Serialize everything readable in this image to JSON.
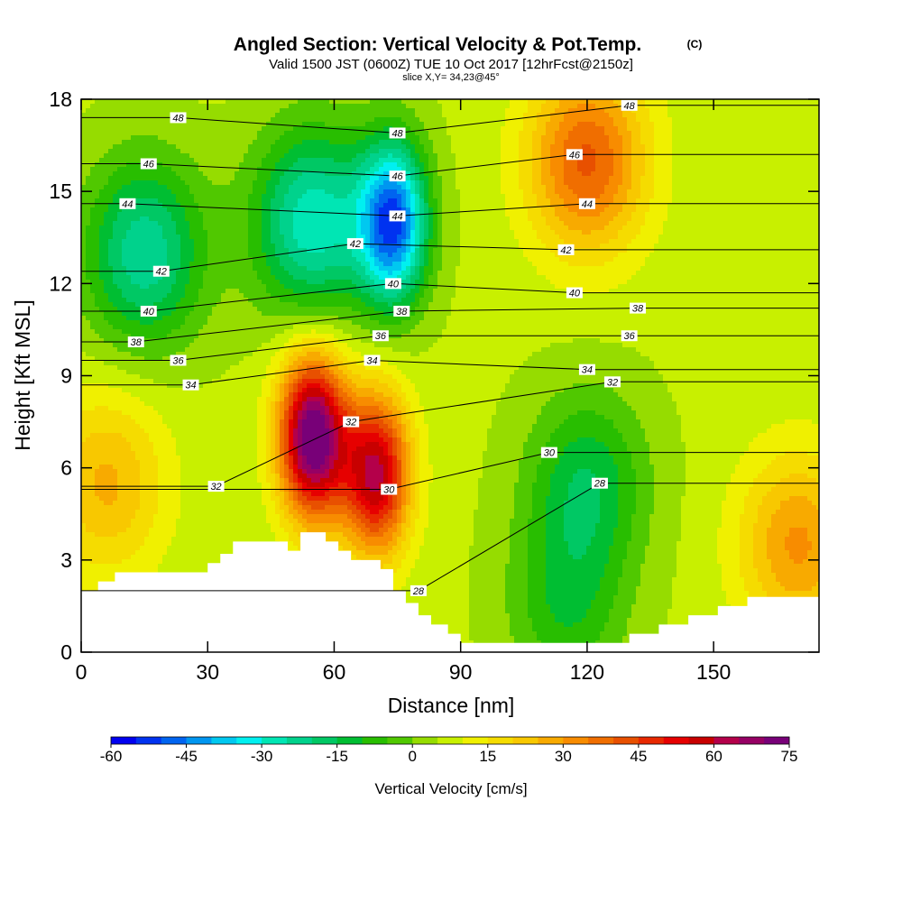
{
  "header": {
    "title": "Angled Section: Vertical Velocity & Pot.Temp.",
    "title_unit": "(C)",
    "subtitle": "Valid 1500 JST (0600Z) TUE 10 Oct 2017 [12hrFcst@2150z]",
    "slice": "slice X,Y= 34,23@45°"
  },
  "chart_data": {
    "type": "heatmap",
    "xlabel": "Distance [nm]",
    "ylabel": "Height [Kft MSL]",
    "xlim": [
      0,
      175
    ],
    "ylim": [
      0,
      18
    ],
    "x_ticks": [
      0,
      30,
      60,
      90,
      120,
      150
    ],
    "y_ticks": [
      0,
      3,
      6,
      9,
      12,
      15,
      18
    ],
    "colorbar": {
      "label": "Vertical Velocity [cm/s]",
      "min": -60,
      "max": 75,
      "step": 5,
      "ticks": [
        -60,
        -45,
        -30,
        -15,
        0,
        15,
        30,
        45,
        60,
        75
      ],
      "colors": [
        "#0000f0",
        "#0032f0",
        "#0064f0",
        "#0096f0",
        "#00c8f0",
        "#00f0f0",
        "#00e6b4",
        "#00d28c",
        "#00c864",
        "#00be32",
        "#28be00",
        "#50c800",
        "#96dc00",
        "#c8f000",
        "#f0f000",
        "#f5dc00",
        "#f8c800",
        "#f8aa00",
        "#f88c00",
        "#f06e00",
        "#e85000",
        "#e82800",
        "#e60000",
        "#c80000",
        "#b4004a",
        "#960064",
        "#780078"
      ]
    },
    "terrain": [
      [
        0,
        2.0
      ],
      [
        4,
        2.0
      ],
      [
        4,
        2.3
      ],
      [
        8,
        2.3
      ],
      [
        8,
        2.6
      ],
      [
        30,
        2.6
      ],
      [
        30,
        2.9
      ],
      [
        33,
        2.9
      ],
      [
        33,
        3.2
      ],
      [
        36,
        3.2
      ],
      [
        36,
        3.6
      ],
      [
        49,
        3.6
      ],
      [
        49,
        3.3
      ],
      [
        52,
        3.3
      ],
      [
        52,
        3.9
      ],
      [
        58,
        3.9
      ],
      [
        58,
        3.6
      ],
      [
        61,
        3.6
      ],
      [
        61,
        3.3
      ],
      [
        64,
        3.3
      ],
      [
        64,
        3.0
      ],
      [
        71,
        3.0
      ],
      [
        71,
        2.7
      ],
      [
        74,
        2.7
      ],
      [
        74,
        2.0
      ],
      [
        77,
        2.0
      ],
      [
        77,
        1.6
      ],
      [
        80,
        1.6
      ],
      [
        80,
        1.2
      ],
      [
        83,
        1.2
      ],
      [
        83,
        0.9
      ],
      [
        87,
        0.9
      ],
      [
        87,
        0.6
      ],
      [
        90,
        0.6
      ],
      [
        90,
        0.3
      ],
      [
        130,
        0.3
      ],
      [
        130,
        0.6
      ],
      [
        137,
        0.6
      ],
      [
        137,
        0.9
      ],
      [
        144,
        0.9
      ],
      [
        144,
        1.2
      ],
      [
        151,
        1.2
      ],
      [
        151,
        1.5
      ],
      [
        158,
        1.5
      ],
      [
        158,
        1.8
      ],
      [
        175,
        1.8
      ]
    ],
    "velocity_features": [
      {
        "x": 55,
        "y": 7.0,
        "value": 72
      },
      {
        "x": 70,
        "y": 5.8,
        "value": 55
      },
      {
        "x": 74,
        "y": 14.0,
        "value": -55
      },
      {
        "x": 55,
        "y": 14.0,
        "value": -35
      },
      {
        "x": 15,
        "y": 13.0,
        "value": -30
      },
      {
        "x": 120,
        "y": 16.0,
        "value": 35
      },
      {
        "x": 6,
        "y": 5.5,
        "value": 20
      },
      {
        "x": 170,
        "y": 3.5,
        "value": 25
      },
      {
        "x": 120,
        "y": 5.5,
        "value": -20
      },
      {
        "x": 115,
        "y": 1.5,
        "value": -15
      }
    ],
    "isentropes": [
      {
        "value": 48,
        "labels": [
          [
            23,
            17.4
          ],
          [
            75,
            16.9
          ],
          [
            130,
            17.8
          ]
        ]
      },
      {
        "value": 46,
        "labels": [
          [
            16,
            15.9
          ],
          [
            75,
            15.5
          ],
          [
            117,
            16.2
          ]
        ]
      },
      {
        "value": 44,
        "labels": [
          [
            11,
            14.6
          ],
          [
            75,
            14.2
          ],
          [
            120,
            14.6
          ]
        ]
      },
      {
        "value": 42,
        "labels": [
          [
            19,
            12.4
          ],
          [
            65,
            13.3
          ],
          [
            115,
            13.1
          ]
        ]
      },
      {
        "value": 40,
        "labels": [
          [
            16,
            11.1
          ],
          [
            74,
            12.0
          ],
          [
            117,
            11.7
          ]
        ]
      },
      {
        "value": 38,
        "labels": [
          [
            13,
            10.1
          ],
          [
            76,
            11.1
          ],
          [
            132,
            11.2
          ]
        ]
      },
      {
        "value": 36,
        "labels": [
          [
            23,
            9.5
          ],
          [
            71,
            10.3
          ],
          [
            130,
            10.3
          ]
        ]
      },
      {
        "value": 34,
        "labels": [
          [
            26,
            8.7
          ],
          [
            69,
            9.5
          ],
          [
            120,
            9.2
          ]
        ]
      },
      {
        "value": 32,
        "labels": [
          [
            32,
            5.4
          ],
          [
            64,
            7.5
          ],
          [
            126,
            8.8
          ]
        ]
      },
      {
        "value": 30,
        "labels": [
          [
            73,
            5.3
          ],
          [
            111,
            6.5
          ]
        ]
      },
      {
        "value": 28,
        "labels": [
          [
            80,
            2.0
          ],
          [
            123,
            5.5
          ]
        ]
      }
    ]
  }
}
